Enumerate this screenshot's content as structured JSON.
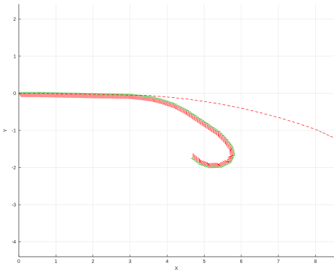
{
  "chart_data": {
    "type": "line",
    "title": "",
    "xlabel": "X",
    "ylabel": "Y",
    "xlim": [
      0,
      8.5
    ],
    "ylim": [
      -4.4,
      2.4
    ],
    "xticks": [
      0,
      1,
      2,
      3,
      4,
      5,
      6,
      7,
      8
    ],
    "yticks": [
      2,
      1,
      0,
      -1,
      -2,
      -3,
      -4
    ],
    "grid": true,
    "colors": {
      "x_axis_segment": "#ff0000",
      "y_axis_segment": "#00b000",
      "axis": "#262626",
      "grid": "#e6e6e6"
    },
    "trajectories": [
      {
        "points": [
          [
            0.0,
            0.0
          ],
          [
            0.5,
            0.0
          ],
          [
            1.0,
            -0.01
          ],
          [
            1.5,
            -0.02
          ],
          [
            2.0,
            -0.03
          ],
          [
            2.5,
            -0.04
          ],
          [
            3.0,
            -0.05
          ],
          [
            3.3,
            -0.08
          ],
          [
            3.6,
            -0.12
          ],
          [
            3.9,
            -0.2
          ],
          [
            4.2,
            -0.3
          ],
          [
            4.5,
            -0.45
          ],
          [
            4.8,
            -0.65
          ],
          [
            5.1,
            -0.85
          ],
          [
            5.4,
            -1.05
          ],
          [
            5.6,
            -1.25
          ],
          [
            5.75,
            -1.45
          ],
          [
            5.8,
            -1.65
          ],
          [
            5.7,
            -1.85
          ],
          [
            5.45,
            -1.97
          ],
          [
            5.15,
            -1.98
          ],
          [
            4.9,
            -1.9
          ],
          [
            4.7,
            -1.75
          ]
        ]
      },
      {
        "points": [
          [
            0.0,
            0.0
          ],
          [
            0.5,
            0.0
          ],
          [
            1.0,
            -0.01
          ],
          [
            1.5,
            -0.02
          ],
          [
            2.0,
            -0.03
          ],
          [
            2.5,
            -0.04
          ],
          [
            3.0,
            -0.05
          ],
          [
            3.5,
            -0.06
          ],
          [
            4.0,
            -0.1
          ],
          [
            4.5,
            -0.15
          ],
          [
            5.0,
            -0.22
          ],
          [
            5.5,
            -0.3
          ],
          [
            6.0,
            -0.4
          ],
          [
            6.5,
            -0.52
          ],
          [
            7.0,
            -0.65
          ],
          [
            7.5,
            -0.8
          ],
          [
            8.0,
            -0.97
          ],
          [
            8.5,
            -1.2
          ]
        ]
      }
    ]
  }
}
